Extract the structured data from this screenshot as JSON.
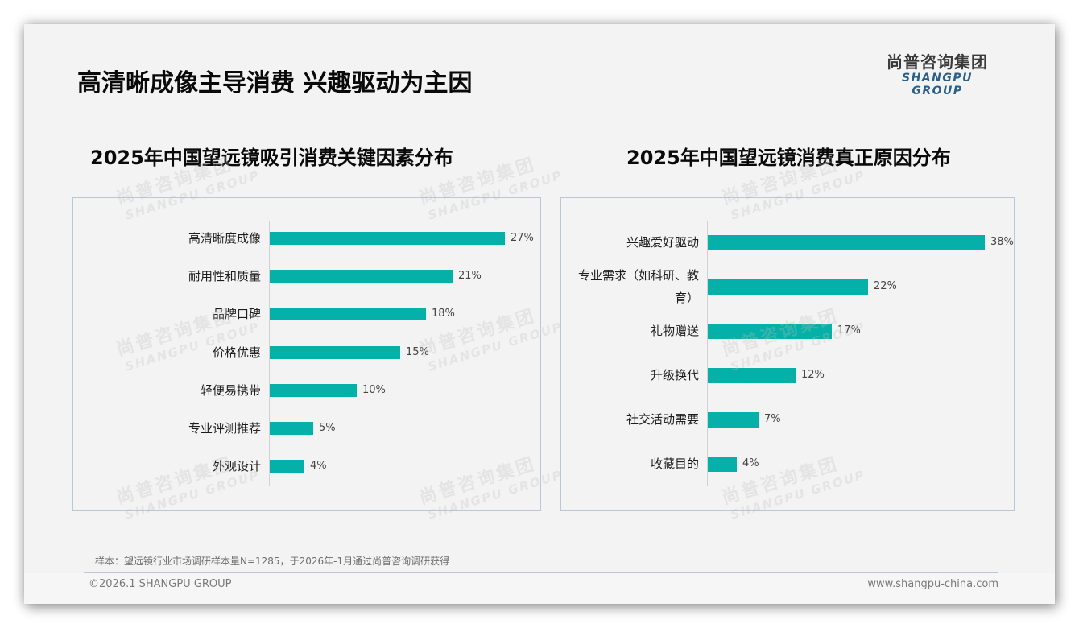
{
  "header": {
    "title": "高清晰成像主导消费 兴趣驱动为主因",
    "logo_cn": "尚普咨询集团",
    "logo_en": "SHANGPU GROUP"
  },
  "watermark": {
    "cn": "尚普咨询集团",
    "en": "SHANGPU GROUP"
  },
  "colors": {
    "bar": "#05b0a8",
    "panel_border": "#b9c7d6",
    "background": "#f3f3f3",
    "logo_en": "#2a5f8a"
  },
  "left_chart": {
    "title": "2025年中国望远镜吸引消费关键因素分布",
    "items": [
      {
        "label": "高清晰度成像",
        "value": 27,
        "display": "27%"
      },
      {
        "label": "耐用性和质量",
        "value": 21,
        "display": "21%"
      },
      {
        "label": "品牌口碑",
        "value": 18,
        "display": "18%"
      },
      {
        "label": "价格优惠",
        "value": 15,
        "display": "15%"
      },
      {
        "label": "轻便易携带",
        "value": 10,
        "display": "10%"
      },
      {
        "label": "专业评测推荐",
        "value": 5,
        "display": "5%"
      },
      {
        "label": "外观设计",
        "value": 4,
        "display": "4%"
      }
    ]
  },
  "right_chart": {
    "title": "2025年中国望远镜消费真正原因分布",
    "items": [
      {
        "label": "兴趣爱好驱动",
        "value": 38,
        "display": "38%"
      },
      {
        "label": "专业需求（如科研、教育）",
        "value": 22,
        "display": "22%"
      },
      {
        "label": "礼物赠送",
        "value": 17,
        "display": "17%"
      },
      {
        "label": "升级换代",
        "value": 12,
        "display": "12%"
      },
      {
        "label": "社交活动需要",
        "value": 7,
        "display": "7%"
      },
      {
        "label": "收藏目的",
        "value": 4,
        "display": "4%"
      }
    ]
  },
  "chart_data": [
    {
      "type": "bar",
      "orientation": "horizontal",
      "title": "2025年中国望远镜吸引消费关键因素分布",
      "categories": [
        "高清晰度成像",
        "耐用性和质量",
        "品牌口碑",
        "价格优惠",
        "轻便易携带",
        "专业评测推荐",
        "外观设计"
      ],
      "values": [
        27,
        21,
        18,
        15,
        10,
        5,
        4
      ],
      "unit": "%",
      "xlabel": "",
      "ylabel": "",
      "data_labels": true,
      "grid": false,
      "legend": null
    },
    {
      "type": "bar",
      "orientation": "horizontal",
      "title": "2025年中国望远镜消费真正原因分布",
      "categories": [
        "兴趣爱好驱动",
        "专业需求（如科研、教育）",
        "礼物赠送",
        "升级换代",
        "社交活动需要",
        "收藏目的"
      ],
      "values": [
        38,
        22,
        17,
        12,
        7,
        4
      ],
      "unit": "%",
      "xlabel": "",
      "ylabel": "",
      "data_labels": true,
      "grid": false,
      "legend": null
    }
  ],
  "footer": {
    "note": "样本：望远镜行业市场调研样本量N=1285，于2026年-1月通过尚普咨询调研获得",
    "copyright": "©2026.1 SHANGPU GROUP",
    "website": "www.shangpu-china.com"
  }
}
